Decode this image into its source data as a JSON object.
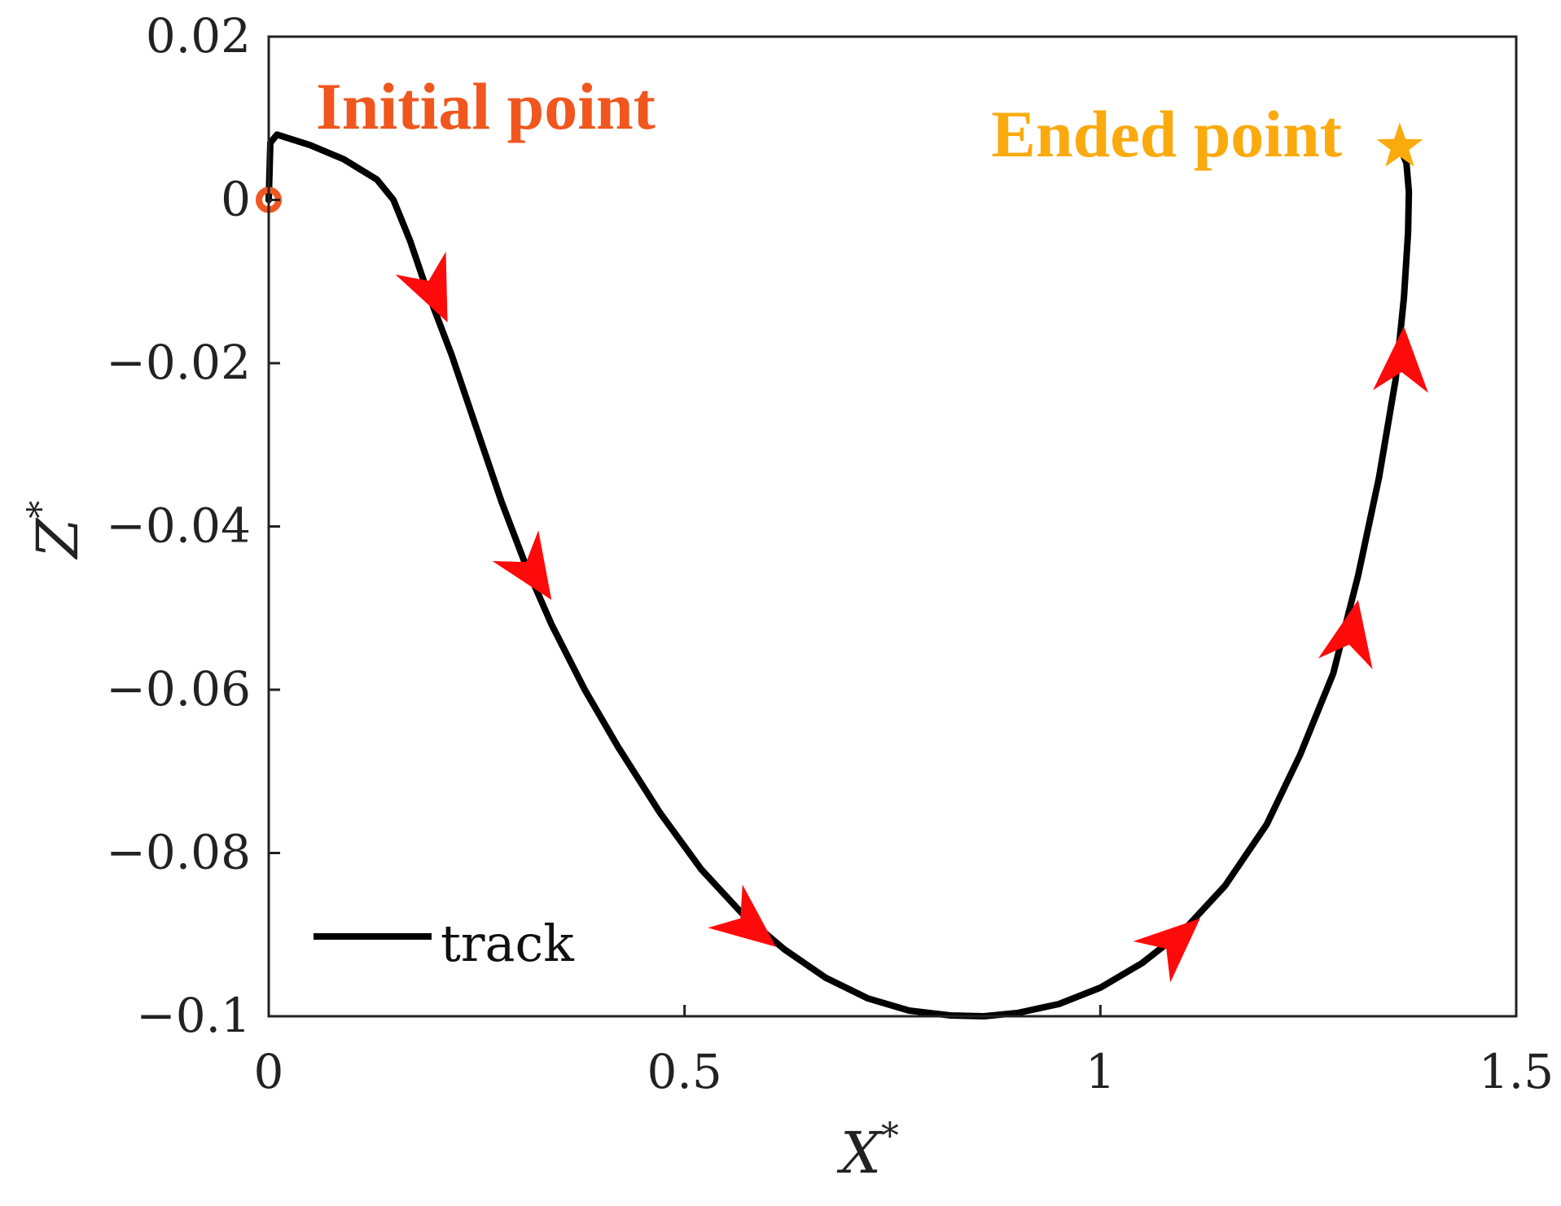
{
  "chart_data": {
    "type": "line",
    "title": "",
    "xlabel": "X",
    "xlabel_sup": "*",
    "ylabel": "Z",
    "ylabel_sup": "*",
    "xlim": [
      0,
      1.5
    ],
    "ylim": [
      -0.1,
      0.02
    ],
    "x_ticks": [
      0,
      0.5,
      1,
      1.5
    ],
    "x_tick_labels": [
      "0",
      "0.5",
      "1",
      "1.5"
    ],
    "y_ticks": [
      0.02,
      0,
      -0.02,
      -0.04,
      -0.06,
      -0.08,
      -0.1
    ],
    "y_tick_labels": [
      "0.02",
      "0",
      "−0.02",
      "−0.04",
      "−0.06",
      "−0.08",
      "−0.1"
    ],
    "grid": false,
    "legend_position": "bottom-left",
    "series": [
      {
        "name": "track",
        "color": "#000000",
        "x": [
          0,
          0.002,
          0.01,
          0.05,
          0.09,
          0.13,
          0.15,
          0.17,
          0.19,
          0.22,
          0.25,
          0.28,
          0.31,
          0.34,
          0.38,
          0.42,
          0.47,
          0.52,
          0.57,
          0.62,
          0.67,
          0.72,
          0.77,
          0.82,
          0.86,
          0.9,
          0.95,
          1.0,
          1.05,
          1.1,
          1.15,
          1.2,
          1.24,
          1.28,
          1.31,
          1.335,
          1.355,
          1.365,
          1.37,
          1.371,
          1.368,
          1.36
        ],
        "y": [
          0,
          0.007,
          0.008,
          0.0067,
          0.005,
          0.0025,
          0.0,
          -0.005,
          -0.011,
          -0.019,
          -0.028,
          -0.037,
          -0.045,
          -0.052,
          -0.06,
          -0.067,
          -0.075,
          -0.082,
          -0.0875,
          -0.0918,
          -0.0953,
          -0.0978,
          -0.0993,
          -0.0999,
          -0.1,
          -0.0996,
          -0.0985,
          -0.0965,
          -0.0935,
          -0.0895,
          -0.084,
          -0.0765,
          -0.068,
          -0.058,
          -0.046,
          -0.034,
          -0.022,
          -0.012,
          -0.004,
          0.001,
          0.0045,
          0.0065
        ]
      }
    ],
    "direction_arrows": [
      {
        "x": 0.215,
        "y": -0.015,
        "dx": 1,
        "dy": -2.2
      },
      {
        "x": 0.34,
        "y": -0.049,
        "dx": 1,
        "dy": -1.5
      },
      {
        "x": 0.61,
        "y": -0.0915,
        "dx": 1,
        "dy": -0.8
      },
      {
        "x": 1.12,
        "y": -0.088,
        "dx": 1,
        "dy": 0.9
      },
      {
        "x": 1.31,
        "y": -0.049,
        "dx": 0.2,
        "dy": 1
      },
      {
        "x": 1.365,
        "y": -0.0155,
        "dx": 0.05,
        "dy": 1
      }
    ],
    "arrow_color": "#ff0a0a",
    "annotations": [
      {
        "label": "Initial point",
        "color": "#f0561e",
        "marker": "circle",
        "x": 0,
        "y": 0
      },
      {
        "label": "Ended point",
        "color": "#fbaa0e",
        "marker": "star",
        "x": 1.36,
        "y": 0.0065
      }
    ]
  }
}
